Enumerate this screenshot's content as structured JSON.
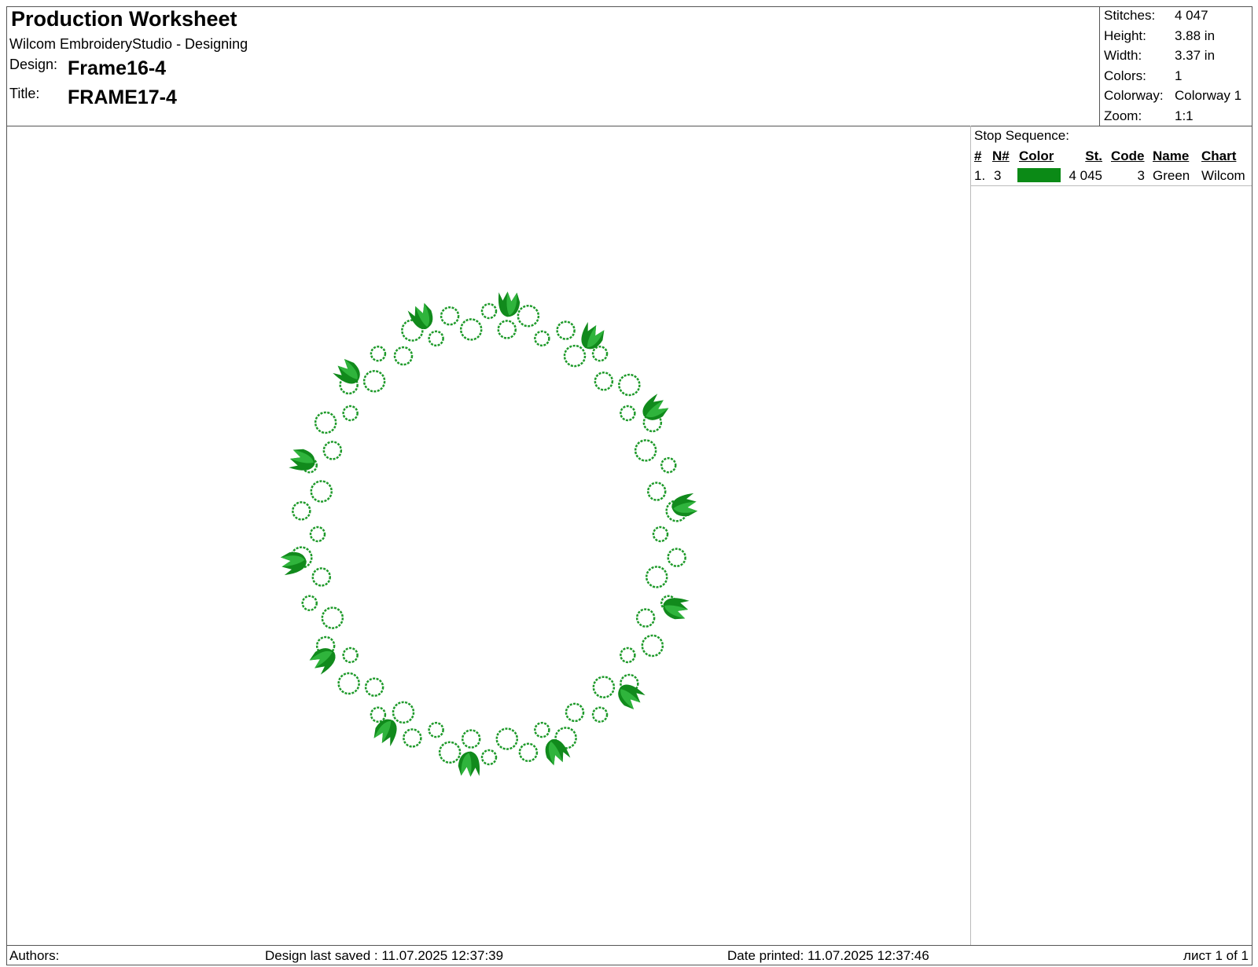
{
  "header": {
    "title": "Production Worksheet",
    "subtitle": "Wilcom EmbroideryStudio - Designing",
    "design_label": "Design:",
    "design": "Frame16-4",
    "title_label": "Title:",
    "title_value": "FRAME17-4"
  },
  "info": [
    {
      "label": "Stitches:",
      "value": "4 047"
    },
    {
      "label": "Height:",
      "value": "3.88 in"
    },
    {
      "label": "Width:",
      "value": "3.37 in"
    },
    {
      "label": "Colors:",
      "value": "1"
    },
    {
      "label": "Colorway:",
      "value": "Colorway 1"
    },
    {
      "label": "Zoom:",
      "value": "1:1"
    }
  ],
  "stop_sequence": {
    "title": "Stop Sequence:",
    "columns": [
      "#",
      "N#",
      "Color",
      "St.",
      "Code",
      "Name",
      "Chart"
    ],
    "rows": [
      {
        "index": "1.",
        "needle": "3",
        "color": "#0b8a16",
        "stitches": "4 045",
        "code": "3",
        "name": "Green",
        "chart": "Wilcom"
      }
    ]
  },
  "footer": {
    "authors": "Authors:",
    "saved": "Design last saved : 11.07.2025 12:37:39",
    "printed": "Date printed: 11.07.2025 12:37:46",
    "page": "лист 1 of 1"
  }
}
